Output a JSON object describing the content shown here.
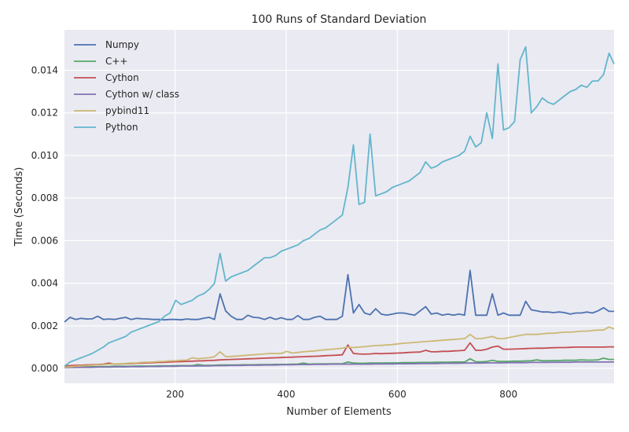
{
  "chart_data": {
    "type": "line",
    "title": "100 Runs of Standard Deviation",
    "xlabel": "Number of Elements",
    "ylabel": "Time (Seconds)",
    "xlim": [
      1,
      990
    ],
    "ylim": [
      -0.0007,
      0.0159
    ],
    "xticks": [
      200,
      400,
      600,
      800
    ],
    "xtick_labels": [
      "200",
      "400",
      "600",
      "800"
    ],
    "yticks": [
      0.0,
      0.002,
      0.004,
      0.006,
      0.008,
      0.01,
      0.012,
      0.014
    ],
    "ytick_labels": [
      "0.000",
      "0.002",
      "0.004",
      "0.006",
      "0.008",
      "0.010",
      "0.012",
      "0.014"
    ],
    "grid": true,
    "legend_position": "top-left",
    "x": [
      1,
      11,
      21,
      31,
      41,
      51,
      61,
      71,
      81,
      91,
      101,
      111,
      121,
      131,
      141,
      151,
      161,
      171,
      181,
      191,
      201,
      211,
      221,
      231,
      241,
      251,
      261,
      271,
      281,
      291,
      301,
      311,
      321,
      331,
      341,
      351,
      361,
      371,
      381,
      391,
      401,
      411,
      421,
      431,
      441,
      451,
      461,
      471,
      481,
      491,
      501,
      511,
      521,
      531,
      541,
      551,
      561,
      571,
      581,
      591,
      601,
      611,
      621,
      631,
      641,
      651,
      661,
      671,
      681,
      691,
      701,
      711,
      721,
      731,
      741,
      751,
      761,
      771,
      781,
      791,
      801,
      811,
      821,
      831,
      841,
      851,
      861,
      871,
      881,
      891,
      901,
      911,
      921,
      931,
      941,
      951,
      961,
      971,
      981,
      990
    ],
    "series": [
      {
        "name": "Numpy",
        "color": "#4C72B0",
        "values": [
          0.00218,
          0.0024,
          0.0023,
          0.00235,
          0.00232,
          0.00233,
          0.00245,
          0.0023,
          0.00232,
          0.0023,
          0.00235,
          0.0024,
          0.0023,
          0.00235,
          0.00233,
          0.00232,
          0.0023,
          0.0023,
          0.00228,
          0.0023,
          0.0023,
          0.00228,
          0.00232,
          0.0023,
          0.0023,
          0.00235,
          0.0024,
          0.0023,
          0.0035,
          0.0027,
          0.00245,
          0.0023,
          0.0023,
          0.0025,
          0.0024,
          0.00238,
          0.0023,
          0.0024,
          0.0023,
          0.00238,
          0.0023,
          0.0023,
          0.00248,
          0.0023,
          0.0023,
          0.0024,
          0.00245,
          0.0023,
          0.0023,
          0.0023,
          0.00245,
          0.0044,
          0.0026,
          0.003,
          0.0026,
          0.00252,
          0.0028,
          0.00255,
          0.0025,
          0.00255,
          0.0026,
          0.0026,
          0.00255,
          0.0025,
          0.0027,
          0.0029,
          0.00255,
          0.0026,
          0.0025,
          0.00255,
          0.0025,
          0.00255,
          0.0025,
          0.0046,
          0.0025,
          0.0025,
          0.0025,
          0.0035,
          0.0025,
          0.0026,
          0.0025,
          0.0025,
          0.0025,
          0.00315,
          0.00275,
          0.0027,
          0.00265,
          0.00265,
          0.00262,
          0.00265,
          0.00262,
          0.00255,
          0.0026,
          0.0026,
          0.00265,
          0.0026,
          0.0027,
          0.00285,
          0.00268,
          0.00268
        ]
      },
      {
        "name": "C++",
        "color": "#55A868",
        "values": [
          5e-05,
          6e-05,
          7e-05,
          7e-05,
          8e-05,
          8e-05,
          8e-05,
          9e-05,
          9e-05,
          0.0001,
          0.0001,
          0.0001,
          0.0001,
          0.00011,
          0.00011,
          0.00011,
          0.00011,
          0.00012,
          0.00012,
          0.00012,
          0.00013,
          0.00013,
          0.00013,
          0.00013,
          0.00018,
          0.00014,
          0.00014,
          0.00015,
          0.00016,
          0.00016,
          0.00016,
          0.00016,
          0.00017,
          0.00017,
          0.00017,
          0.00018,
          0.00018,
          0.00018,
          0.00019,
          0.00019,
          0.00019,
          0.0002,
          0.0002,
          0.00025,
          0.0002,
          0.00021,
          0.00021,
          0.00021,
          0.00022,
          0.00022,
          0.00022,
          0.0003,
          0.00025,
          0.00024,
          0.00024,
          0.00025,
          0.00025,
          0.00025,
          0.00026,
          0.00026,
          0.00026,
          0.00027,
          0.00027,
          0.00027,
          0.00028,
          0.00028,
          0.00028,
          0.00029,
          0.00029,
          0.00029,
          0.0003,
          0.0003,
          0.0003,
          0.00045,
          0.00031,
          0.00031,
          0.00032,
          0.00038,
          0.00033,
          0.00033,
          0.00033,
          0.00034,
          0.00034,
          0.00035,
          0.00036,
          0.0004,
          0.00036,
          0.00036,
          0.00037,
          0.00037,
          0.00038,
          0.00038,
          0.00038,
          0.0004,
          0.00039,
          0.00039,
          0.0004,
          0.00048,
          0.00042,
          0.00042
        ]
      },
      {
        "name": "Cython",
        "color": "#C44E52",
        "values": [
          0.00012,
          0.00013,
          0.00014,
          0.00015,
          0.00016,
          0.00017,
          0.00018,
          0.0002,
          0.00025,
          0.0002,
          0.00021,
          0.00022,
          0.00023,
          0.00024,
          0.00025,
          0.00026,
          0.00027,
          0.00028,
          0.00029,
          0.0003,
          0.00031,
          0.00032,
          0.00033,
          0.00034,
          0.00035,
          0.00036,
          0.00037,
          0.00038,
          0.0004,
          0.00041,
          0.00042,
          0.00043,
          0.00044,
          0.00045,
          0.00046,
          0.00047,
          0.00048,
          0.00049,
          0.0005,
          0.00051,
          0.00052,
          0.00053,
          0.00054,
          0.00055,
          0.00056,
          0.00057,
          0.00058,
          0.0006,
          0.00061,
          0.00062,
          0.00064,
          0.0011,
          0.0007,
          0.00068,
          0.00067,
          0.00068,
          0.0007,
          0.00069,
          0.0007,
          0.00071,
          0.00072,
          0.00073,
          0.00075,
          0.00076,
          0.00077,
          0.00085,
          0.00078,
          0.00078,
          0.0008,
          0.0008,
          0.00082,
          0.00083,
          0.00085,
          0.0012,
          0.00085,
          0.00085,
          0.0009,
          0.001,
          0.00105,
          0.0009,
          0.0009,
          0.00091,
          0.00092,
          0.00093,
          0.00094,
          0.00095,
          0.00095,
          0.00096,
          0.00097,
          0.00098,
          0.00098,
          0.00099,
          0.001,
          0.001,
          0.001,
          0.001,
          0.001,
          0.001,
          0.00101,
          0.00101
        ]
      },
      {
        "name": "Cython w/ class",
        "color": "#8172B2",
        "values": [
          3e-05,
          4e-05,
          4e-05,
          5e-05,
          5e-05,
          5e-05,
          6e-05,
          6e-05,
          6e-05,
          7e-05,
          7e-05,
          7e-05,
          8e-05,
          8e-05,
          8e-05,
          9e-05,
          9e-05,
          9e-05,
          0.0001,
          0.0001,
          0.0001,
          0.00011,
          0.00011,
          0.00011,
          0.00012,
          0.00012,
          0.00012,
          0.00013,
          0.00013,
          0.00013,
          0.00014,
          0.00014,
          0.00014,
          0.00015,
          0.00015,
          0.00015,
          0.00016,
          0.00016,
          0.00016,
          0.00017,
          0.00017,
          0.00017,
          0.00018,
          0.00018,
          0.00018,
          0.00019,
          0.00019,
          0.00019,
          0.0002,
          0.0002,
          0.0002,
          0.0002,
          0.0002,
          0.0002,
          0.0002,
          0.0002,
          0.00021,
          0.00021,
          0.00021,
          0.00021,
          0.00022,
          0.00022,
          0.00022,
          0.00022,
          0.00023,
          0.00023,
          0.00023,
          0.00023,
          0.00024,
          0.00024,
          0.00024,
          0.00024,
          0.00025,
          0.00025,
          0.00025,
          0.00025,
          0.00026,
          0.00026,
          0.00026,
          0.00026,
          0.00027,
          0.00027,
          0.00027,
          0.00027,
          0.00028,
          0.00028,
          0.00028,
          0.00028,
          0.00029,
          0.00029,
          0.00029,
          0.00029,
          0.0003,
          0.0003,
          0.0003,
          0.0003,
          0.0003,
          0.0003,
          0.0003,
          0.0003
        ]
      },
      {
        "name": "pybind11",
        "color": "#CCB974",
        "values": [
          5e-05,
          8e-05,
          0.0001,
          0.00012,
          0.00013,
          0.00015,
          0.00016,
          0.00018,
          0.0002,
          0.00021,
          0.00022,
          0.00023,
          0.00025,
          0.00026,
          0.00028,
          0.00029,
          0.0003,
          0.00032,
          0.00033,
          0.00035,
          0.00036,
          0.00038,
          0.00039,
          0.0005,
          0.00045,
          0.00048,
          0.0005,
          0.00055,
          0.00078,
          0.00055,
          0.00056,
          0.00058,
          0.0006,
          0.00062,
          0.00064,
          0.00066,
          0.00068,
          0.0007,
          0.0007,
          0.0007,
          0.0008,
          0.00072,
          0.00075,
          0.00078,
          0.0008,
          0.00082,
          0.00085,
          0.00088,
          0.0009,
          0.00092,
          0.00095,
          0.001,
          0.00098,
          0.001,
          0.00102,
          0.00105,
          0.00107,
          0.00108,
          0.0011,
          0.00112,
          0.00115,
          0.00118,
          0.0012,
          0.00122,
          0.00124,
          0.00126,
          0.00128,
          0.0013,
          0.00132,
          0.00134,
          0.00136,
          0.00138,
          0.0014,
          0.0016,
          0.0014,
          0.0014,
          0.00145,
          0.0015,
          0.0014,
          0.0014,
          0.00145,
          0.0015,
          0.00155,
          0.0016,
          0.0016,
          0.0016,
          0.00162,
          0.00165,
          0.00165,
          0.00168,
          0.0017,
          0.0017,
          0.00172,
          0.00175,
          0.00175,
          0.00178,
          0.0018,
          0.0018,
          0.00195,
          0.00185
        ]
      },
      {
        "name": "Python",
        "color": "#64B5CD",
        "values": [
          0.0001,
          0.0003,
          0.0004,
          0.0005,
          0.0006,
          0.0007,
          0.00085,
          0.001,
          0.0012,
          0.0013,
          0.0014,
          0.0015,
          0.0017,
          0.0018,
          0.0019,
          0.002,
          0.0021,
          0.0022,
          0.00245,
          0.0026,
          0.0032,
          0.003,
          0.0031,
          0.0032,
          0.0034,
          0.0035,
          0.0037,
          0.004,
          0.0054,
          0.0041,
          0.0043,
          0.0044,
          0.0045,
          0.0046,
          0.0048,
          0.005,
          0.0052,
          0.0052,
          0.0053,
          0.0055,
          0.0056,
          0.0057,
          0.0058,
          0.006,
          0.0061,
          0.0063,
          0.0065,
          0.0066,
          0.0068,
          0.007,
          0.0072,
          0.0085,
          0.0105,
          0.0077,
          0.0078,
          0.011,
          0.0081,
          0.0082,
          0.0083,
          0.0085,
          0.0086,
          0.0087,
          0.0088,
          0.009,
          0.0092,
          0.0097,
          0.0094,
          0.0095,
          0.0097,
          0.0098,
          0.0099,
          0.01,
          0.0102,
          0.0109,
          0.0104,
          0.0106,
          0.012,
          0.0108,
          0.0143,
          0.0112,
          0.0113,
          0.0116,
          0.0145,
          0.0151,
          0.012,
          0.0123,
          0.0127,
          0.0125,
          0.0124,
          0.0126,
          0.0128,
          0.013,
          0.0131,
          0.0133,
          0.0132,
          0.0135,
          0.0135,
          0.0138,
          0.0148,
          0.0143
        ]
      }
    ]
  }
}
